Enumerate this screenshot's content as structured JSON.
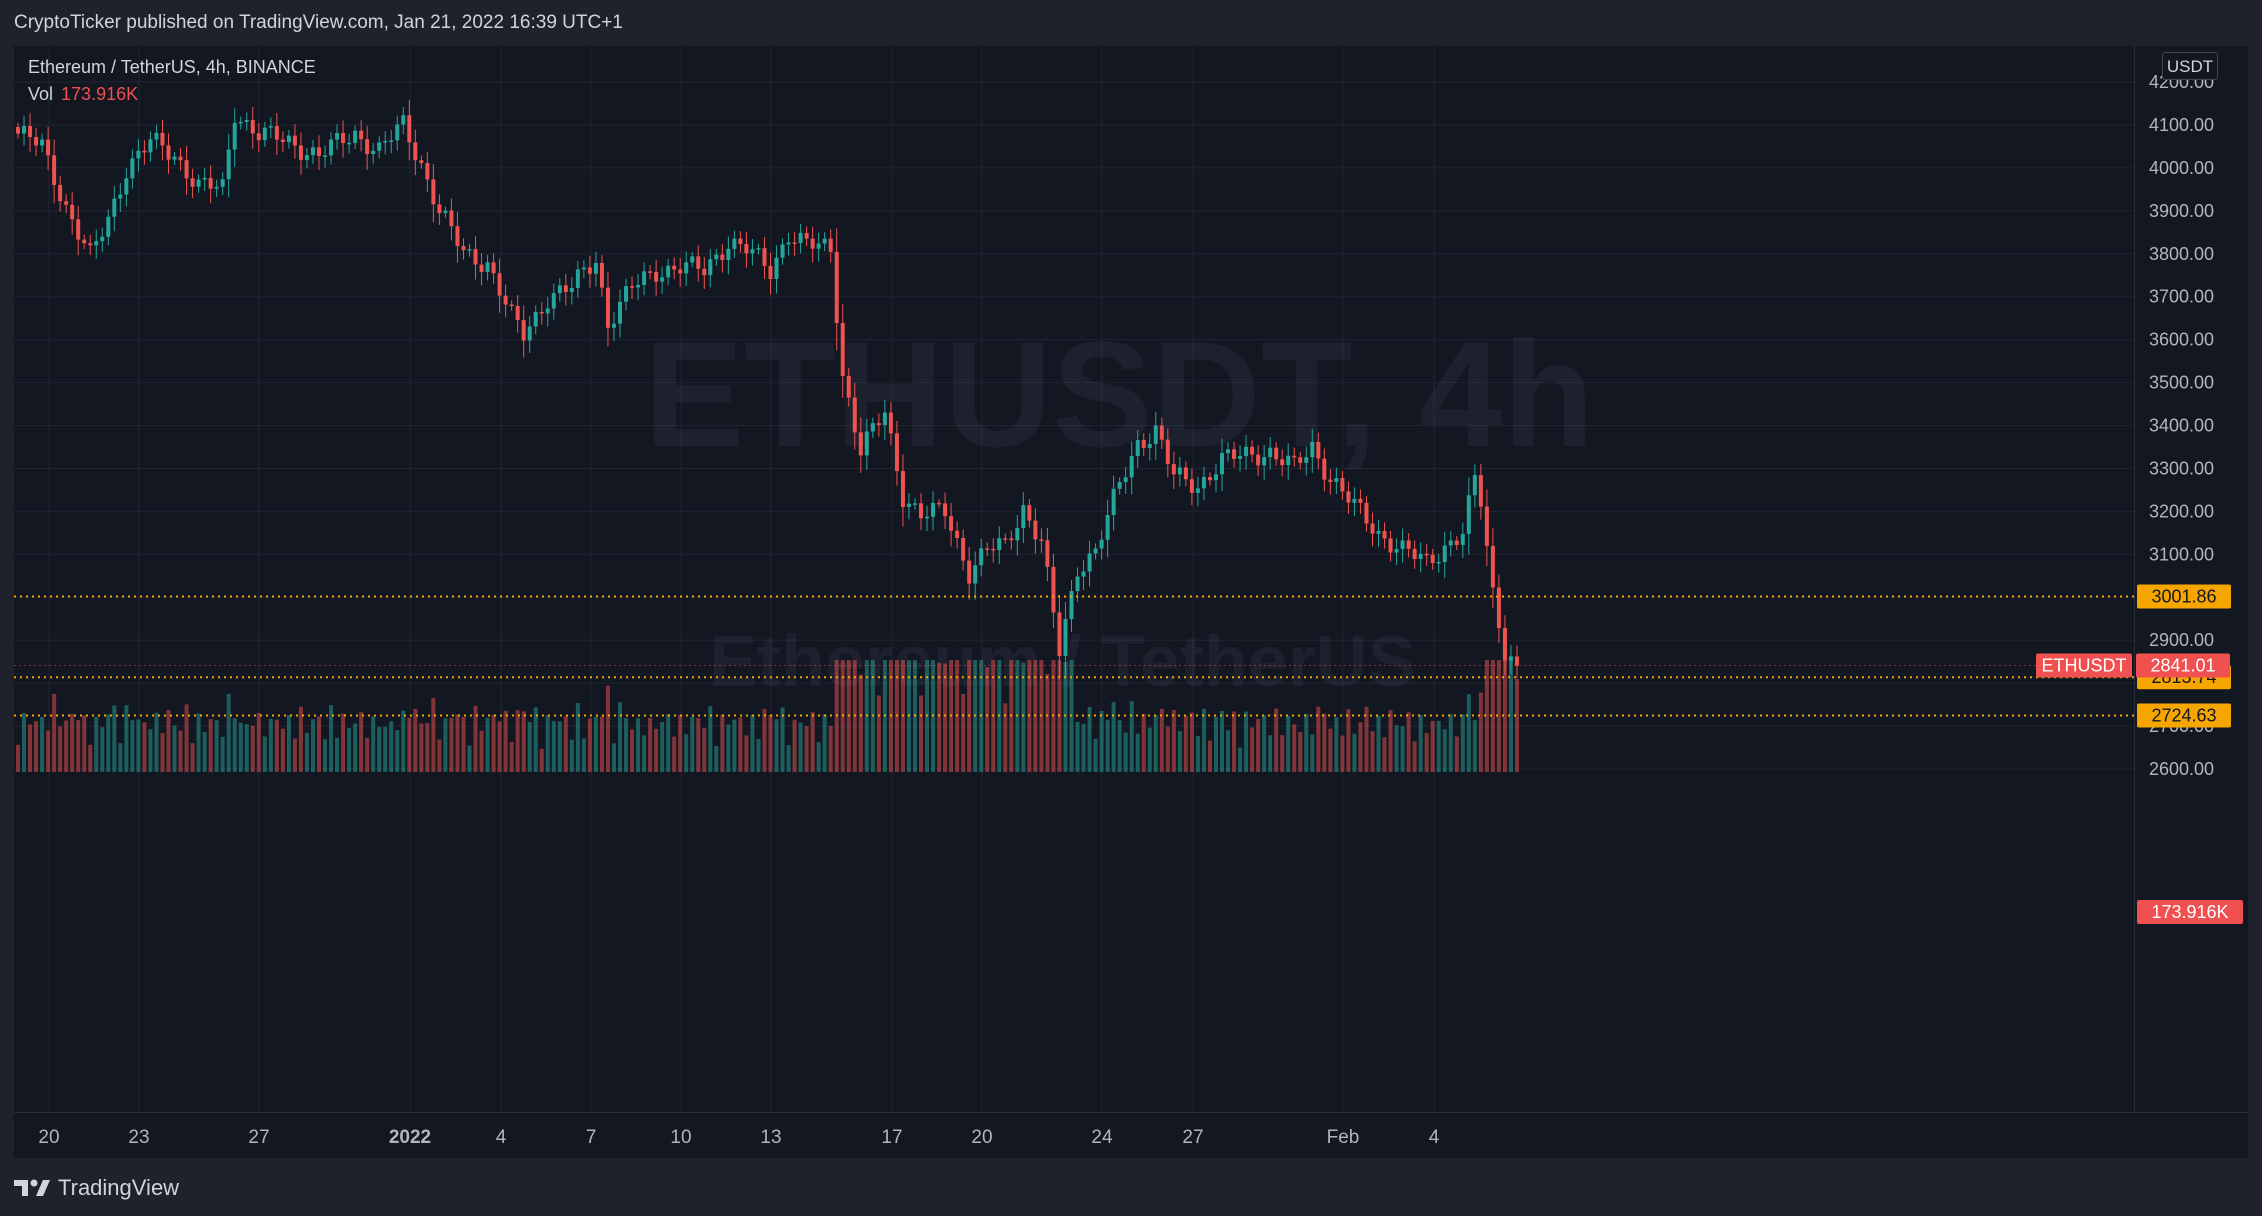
{
  "header": {
    "publisher_line": "CryptoTicker published on TradingView.com, Jan 21, 2022 16:39 UTC+1"
  },
  "legend": {
    "symbol_line": "Ethereum / TetherUS, 4h, BINANCE",
    "vol_label": "Vol",
    "vol_value": "173.916K"
  },
  "watermark": {
    "line1": "ETHUSDT, 4h",
    "line2": "Ethereum / TetherUS"
  },
  "price_scale": {
    "currency": "USDT"
  },
  "footer": {
    "brand": "TradingView"
  },
  "colors": {
    "up": "#26a69a",
    "down": "#ef5350",
    "background": "#131722",
    "level": "#f7a600"
  },
  "chart_data": {
    "type": "candlestick",
    "timeframe": "4h",
    "y_ticks": [
      "4200.00",
      "4100.00",
      "4000.00",
      "3900.00",
      "3800.00",
      "3700.00",
      "3600.00",
      "3500.00",
      "3400.00",
      "3300.00",
      "3200.00",
      "3100.00",
      "3000.00",
      "2900.00",
      "2800.00",
      "2700.00",
      "2600.00"
    ],
    "ylim": [
      2600,
      4300
    ],
    "x_ticks": [
      "20",
      "23",
      "27",
      "2022",
      "4",
      "7",
      "10",
      "13",
      "17",
      "20",
      "24",
      "27",
      "Feb",
      "4"
    ],
    "price_anchors": [
      [
        0,
        4080
      ],
      [
        4,
        4050
      ],
      [
        8,
        3910
      ],
      [
        12,
        3790
      ],
      [
        15,
        3880
      ],
      [
        18,
        4000
      ],
      [
        22,
        4060
      ],
      [
        26,
        4030
      ],
      [
        30,
        3960
      ],
      [
        34,
        3950
      ],
      [
        36,
        4130
      ],
      [
        40,
        4080
      ],
      [
        45,
        4060
      ],
      [
        50,
        4030
      ],
      [
        56,
        4080
      ],
      [
        60,
        4040
      ],
      [
        64,
        4100
      ],
      [
        67,
        4010
      ],
      [
        70,
        3900
      ],
      [
        74,
        3800
      ],
      [
        78,
        3780
      ],
      [
        82,
        3650
      ],
      [
        84,
        3610
      ],
      [
        88,
        3700
      ],
      [
        92,
        3720
      ],
      [
        96,
        3790
      ],
      [
        98,
        3640
      ],
      [
        102,
        3720
      ],
      [
        106,
        3760
      ],
      [
        110,
        3770
      ],
      [
        114,
        3760
      ],
      [
        118,
        3830
      ],
      [
        121,
        3810
      ],
      [
        125,
        3760
      ],
      [
        128,
        3850
      ],
      [
        131,
        3820
      ],
      [
        135,
        3810
      ],
      [
        137,
        3520
      ],
      [
        140,
        3340
      ],
      [
        144,
        3430
      ],
      [
        147,
        3240
      ],
      [
        150,
        3190
      ],
      [
        154,
        3200
      ],
      [
        158,
        3060
      ],
      [
        161,
        3110
      ],
      [
        164,
        3120
      ],
      [
        167,
        3210
      ],
      [
        170,
        3130
      ],
      [
        173,
        2870
      ],
      [
        176,
        3070
      ],
      [
        179,
        3110
      ],
      [
        183,
        3260
      ],
      [
        186,
        3360
      ],
      [
        189,
        3390
      ],
      [
        192,
        3280
      ],
      [
        196,
        3260
      ],
      [
        200,
        3320
      ],
      [
        204,
        3330
      ],
      [
        208,
        3340
      ],
      [
        212,
        3300
      ],
      [
        215,
        3350
      ],
      [
        218,
        3280
      ],
      [
        222,
        3210
      ],
      [
        226,
        3150
      ],
      [
        230,
        3110
      ],
      [
        234,
        3080
      ],
      [
        237,
        3120
      ],
      [
        240,
        3150
      ],
      [
        242,
        3270
      ],
      [
        243,
        3220
      ],
      [
        245,
        3010
      ],
      [
        247,
        2880
      ],
      [
        249,
        2841
      ]
    ],
    "levels": [
      "3001.86",
      "2813.74",
      "2724.63"
    ],
    "last_price": "2841.01",
    "last_label": "ETHUSDT",
    "volume_label": "173.916K"
  }
}
